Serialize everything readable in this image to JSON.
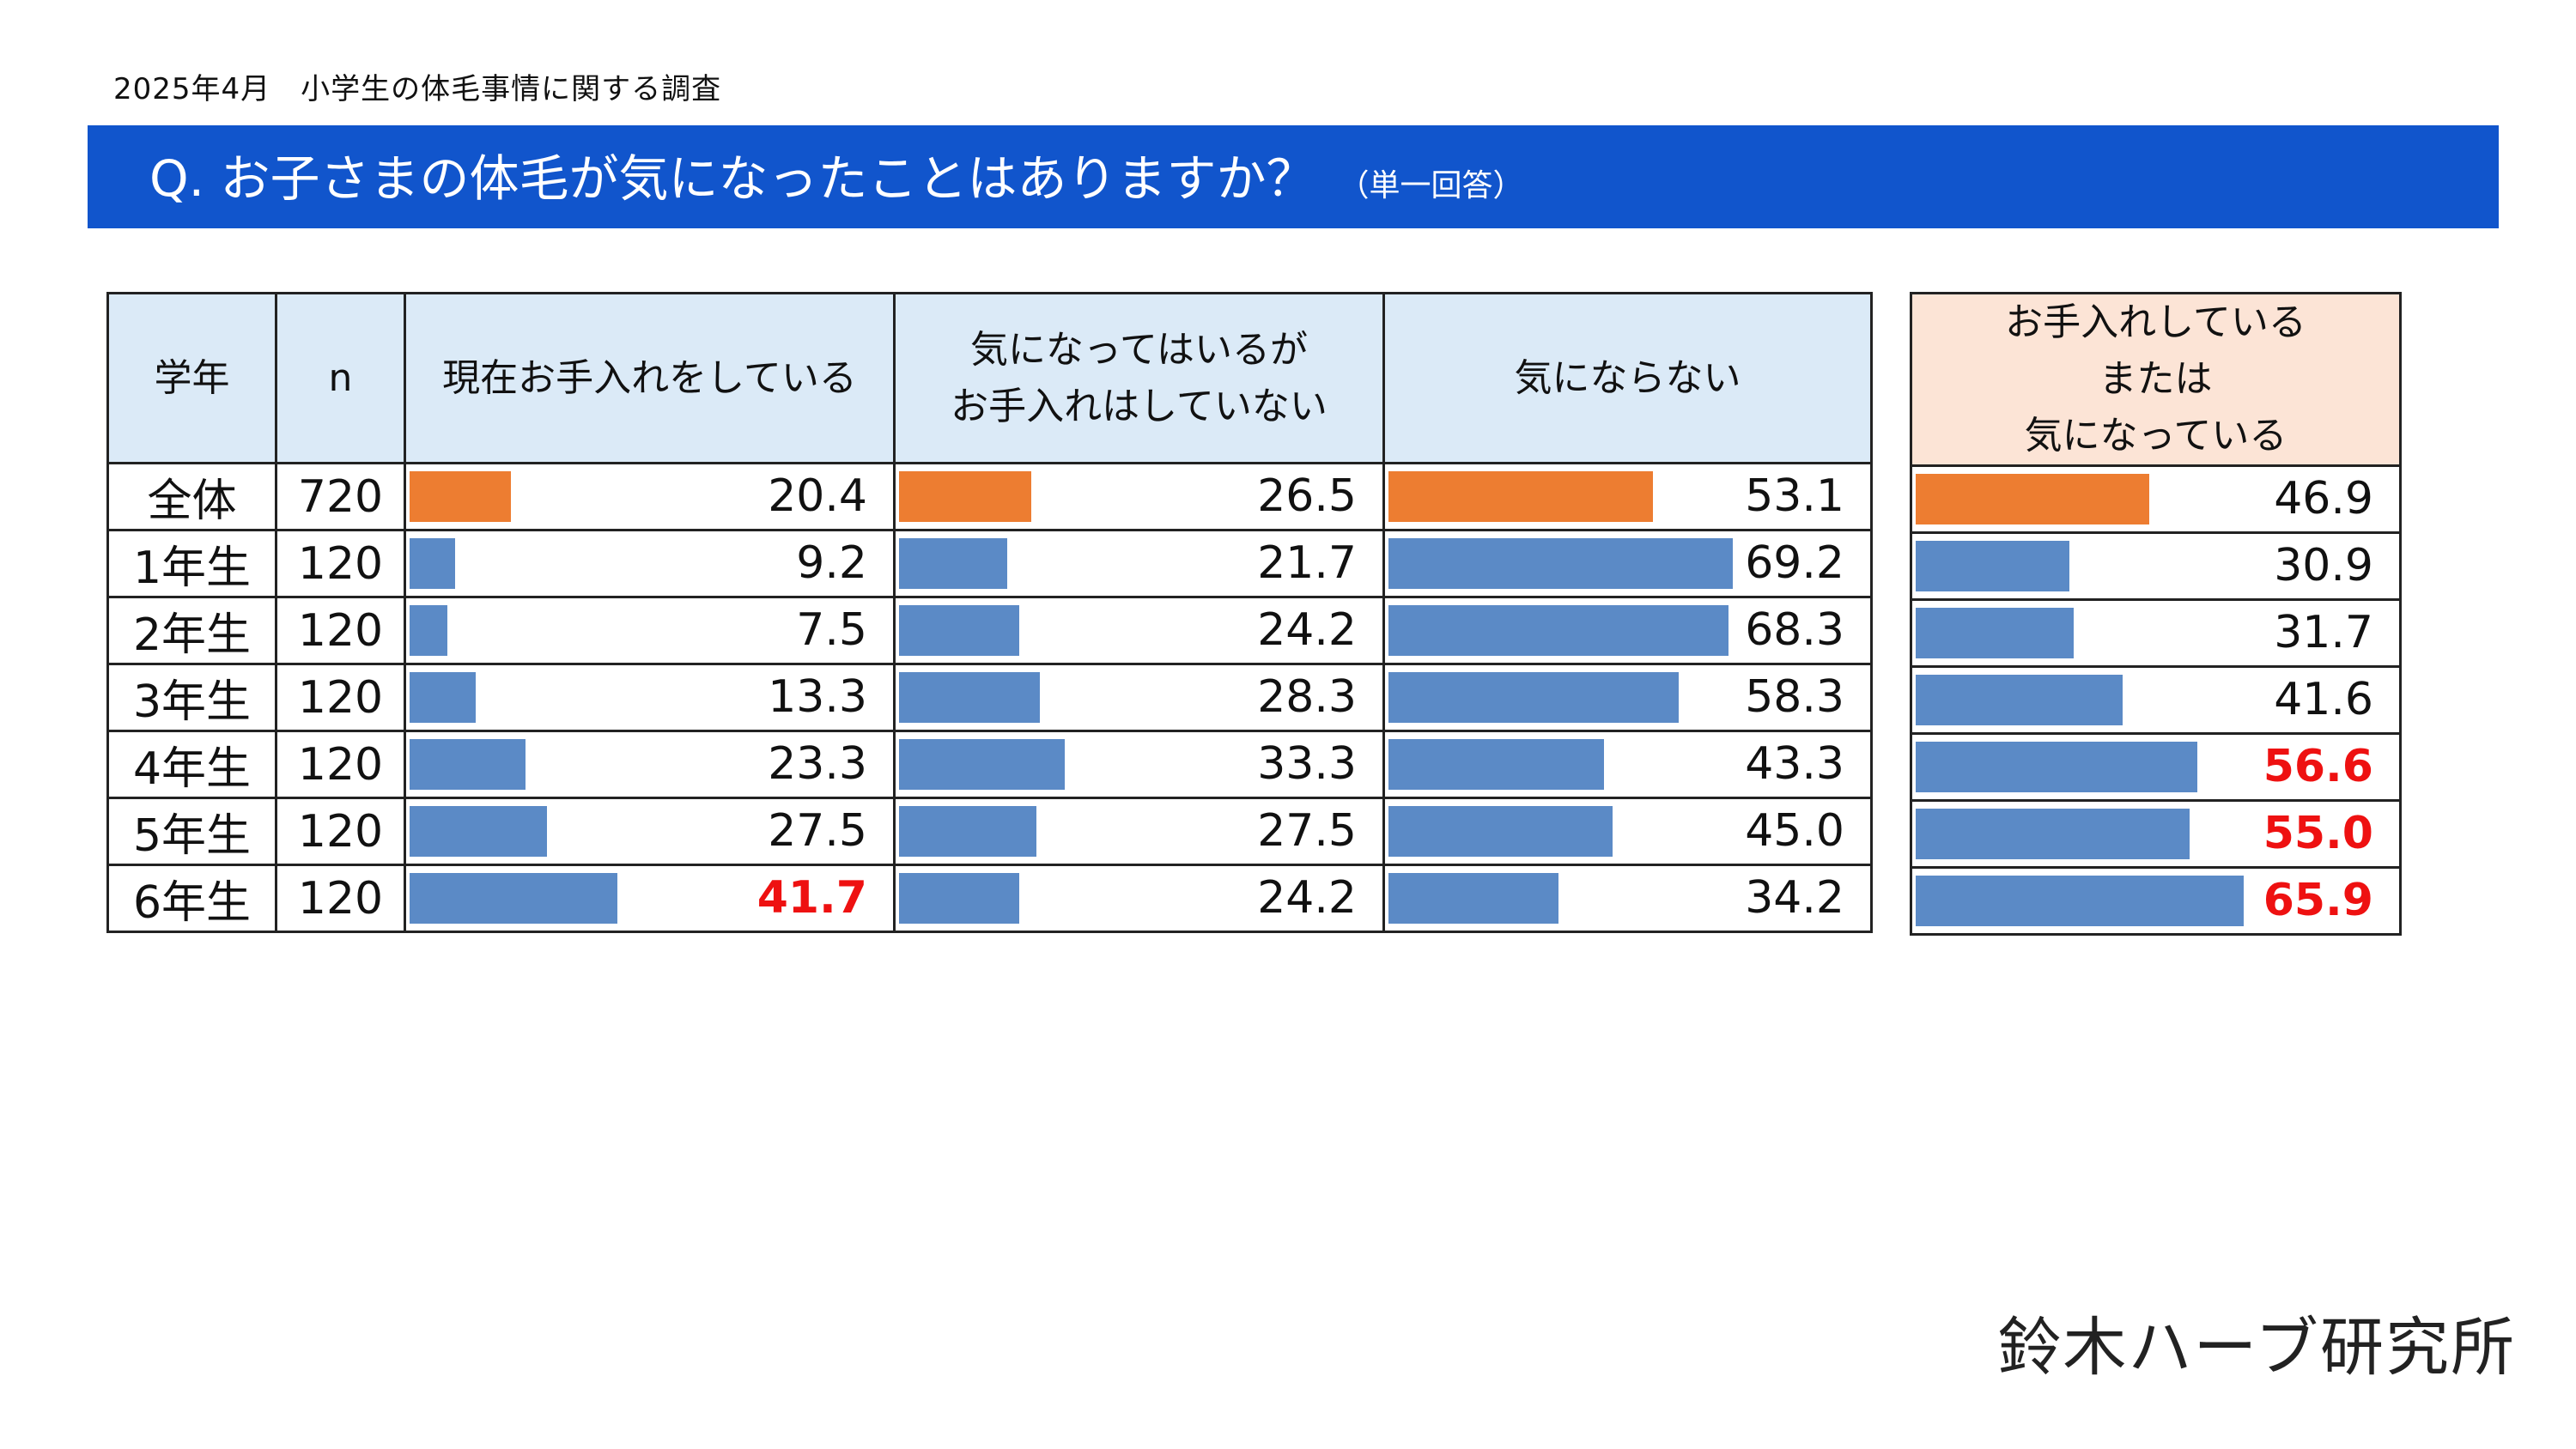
{
  "header": {
    "subtitle": "2025年4月　小学生の体毛事情に関する調査",
    "question": "Q. お子さまの体毛が気になったことはありますか？",
    "question_note": "（単一回答）"
  },
  "colors": {
    "banner": "#1155cc",
    "bar_total": "#ed7d31",
    "bar_grade": "#5b8ac6",
    "highlight": "#ee1111",
    "header_blue": "#dbeaf7",
    "header_peach": "#fce4d6"
  },
  "chart_data": {
    "type": "table",
    "columns": {
      "grade": "学年",
      "n": "n",
      "col1": "現在お手入れをしている",
      "col2_line1": "気になってはいるが",
      "col2_line2": "お手入れはしていない",
      "col3": "気にならない",
      "col4_line1": "お手入れしている",
      "col4_line2": "または",
      "col4_line3": "気になっている"
    },
    "rows": [
      {
        "grade": "全体",
        "n": "720",
        "col1": "20.4",
        "col2": "26.5",
        "col3": "53.1",
        "col4": "46.9",
        "total": true
      },
      {
        "grade": "1年生",
        "n": "120",
        "col1": "9.2",
        "col2": "21.7",
        "col3": "69.2",
        "col4": "30.9"
      },
      {
        "grade": "2年生",
        "n": "120",
        "col1": "7.5",
        "col2": "24.2",
        "col3": "68.3",
        "col4": "31.7"
      },
      {
        "grade": "3年生",
        "n": "120",
        "col1": "13.3",
        "col2": "28.3",
        "col3": "58.3",
        "col4": "41.6"
      },
      {
        "grade": "4年生",
        "n": "120",
        "col1": "23.3",
        "col2": "33.3",
        "col3": "43.3",
        "col4": "56.6",
        "hi": [
          "col4"
        ]
      },
      {
        "grade": "5年生",
        "n": "120",
        "col1": "27.5",
        "col2": "27.5",
        "col3": "45.0",
        "col4": "55.0",
        "hi": [
          "col4"
        ]
      },
      {
        "grade": "6年生",
        "n": "120",
        "col1": "41.7",
        "col2": "24.2",
        "col3": "34.2",
        "col4": "65.9",
        "hi": [
          "col1",
          "col4"
        ]
      }
    ],
    "unit": "%"
  },
  "brand": "鈴木ハーブ研究所"
}
